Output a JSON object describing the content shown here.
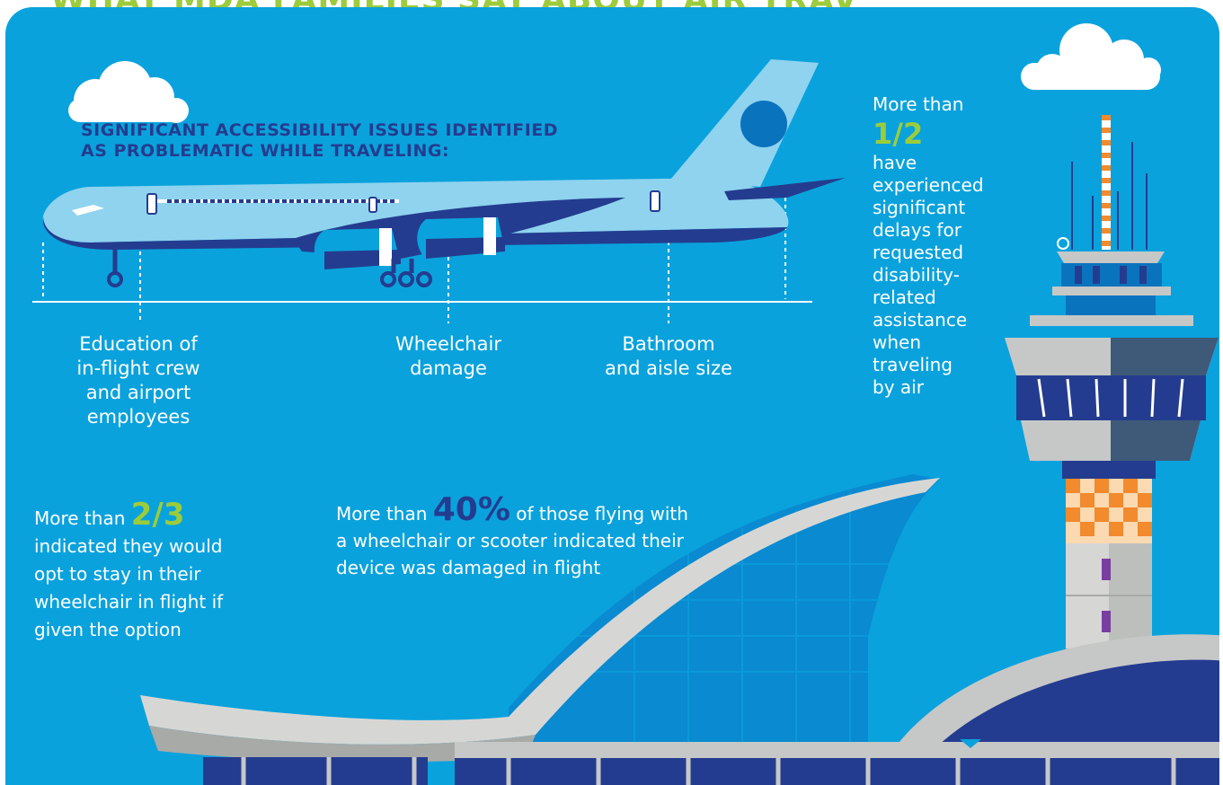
{
  "title": "WHAT MDA FAMILIES SAY ABOUT AIR TRAVEL",
  "heading": {
    "line1": "SIGNIFICANT ACCESSIBILITY ISSUES IDENTIFIED",
    "line2": "AS PROBLEMATIC WHILE TRAVELING:"
  },
  "issues": [
    {
      "lines": [
        "Education of",
        "in-flight crew",
        "and airport",
        "employees"
      ]
    },
    {
      "lines": [
        "Wheelchair",
        "damage"
      ]
    },
    {
      "lines": [
        "Bathroom",
        "and aisle size"
      ]
    }
  ],
  "stat_two_thirds": {
    "prefix": "More than",
    "value": "2/3",
    "lines": [
      "indicated they would",
      "opt to stay in their",
      "wheelchair in flight if",
      "given the option"
    ]
  },
  "stat_forty": {
    "prefix": "More than",
    "value": "40%",
    "line1_rest": "of those flying with",
    "lines": [
      "a wheelchair or scooter indicated their",
      "device was damaged in flight"
    ]
  },
  "stat_half": {
    "prefix": "More than",
    "value": "1/2",
    "lines": [
      "have",
      "experienced",
      "significant",
      "delays for",
      "requested",
      "disability-",
      "related",
      "assistance",
      "when",
      "traveling",
      "by air"
    ]
  },
  "colors": {
    "background_blue": "#0aa2dc",
    "accent_green": "#9ccc3c",
    "heading_navy": "#243c8f",
    "plane_light": "#8fd3ef",
    "plane_dark": "#243c8f"
  }
}
